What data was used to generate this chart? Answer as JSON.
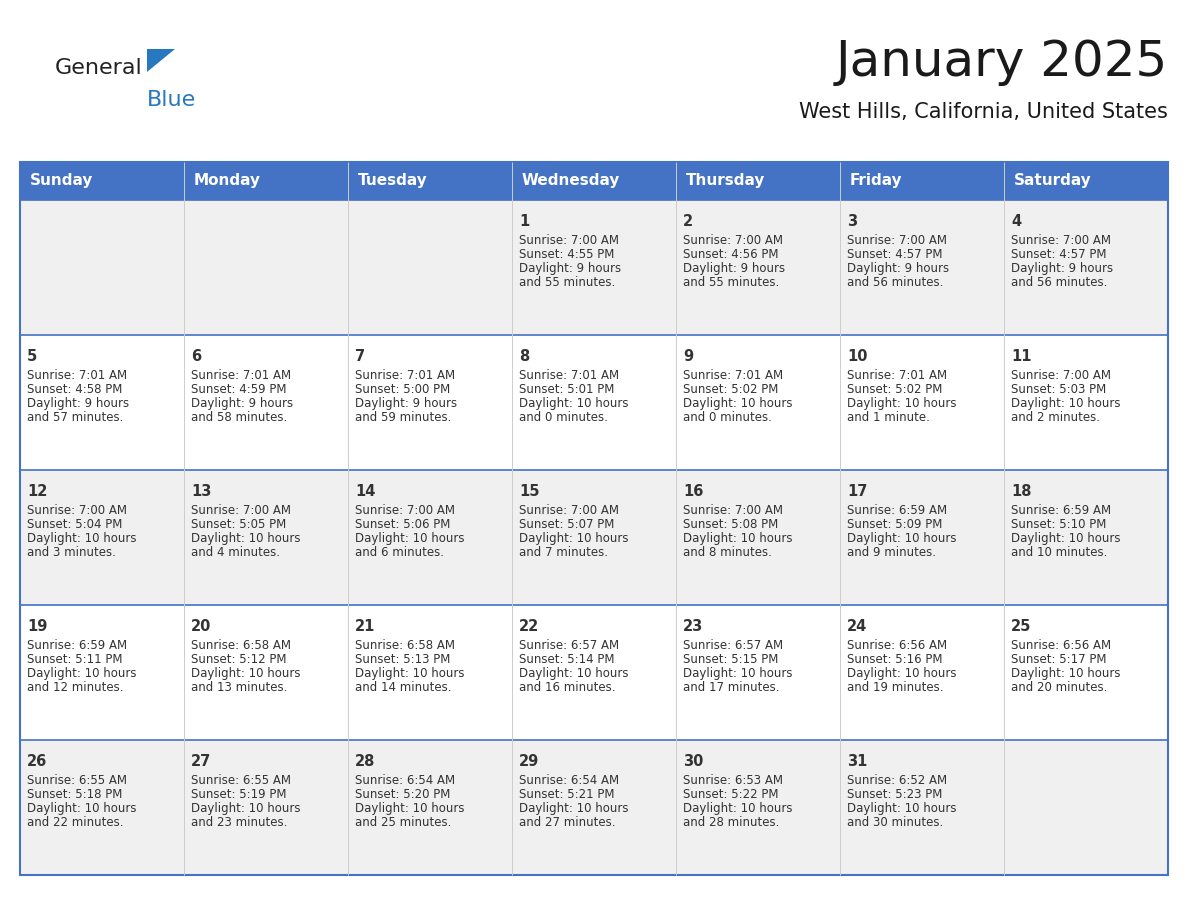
{
  "title": "January 2025",
  "subtitle": "West Hills, California, United States",
  "header_bg": "#4472C4",
  "header_text_color": "#FFFFFF",
  "cell_bg_odd": "#F0F0F0",
  "cell_bg_even": "#FFFFFF",
  "border_color": "#4472C4",
  "text_color": "#333333",
  "day_headers": [
    "Sunday",
    "Monday",
    "Tuesday",
    "Wednesday",
    "Thursday",
    "Friday",
    "Saturday"
  ],
  "title_color": "#1a1a1a",
  "subtitle_color": "#1a1a1a",
  "logo_general_color": "#222222",
  "logo_blue_color": "#2878c0",
  "logo_triangle_color": "#2878c0",
  "days": [
    {
      "day": 1,
      "col": 3,
      "row": 0,
      "sunrise": "7:00 AM",
      "sunset": "4:55 PM",
      "daylight": "9 hours and 55 minutes."
    },
    {
      "day": 2,
      "col": 4,
      "row": 0,
      "sunrise": "7:00 AM",
      "sunset": "4:56 PM",
      "daylight": "9 hours and 55 minutes."
    },
    {
      "day": 3,
      "col": 5,
      "row": 0,
      "sunrise": "7:00 AM",
      "sunset": "4:57 PM",
      "daylight": "9 hours and 56 minutes."
    },
    {
      "day": 4,
      "col": 6,
      "row": 0,
      "sunrise": "7:00 AM",
      "sunset": "4:57 PM",
      "daylight": "9 hours and 56 minutes."
    },
    {
      "day": 5,
      "col": 0,
      "row": 1,
      "sunrise": "7:01 AM",
      "sunset": "4:58 PM",
      "daylight": "9 hours and 57 minutes."
    },
    {
      "day": 6,
      "col": 1,
      "row": 1,
      "sunrise": "7:01 AM",
      "sunset": "4:59 PM",
      "daylight": "9 hours and 58 minutes."
    },
    {
      "day": 7,
      "col": 2,
      "row": 1,
      "sunrise": "7:01 AM",
      "sunset": "5:00 PM",
      "daylight": "9 hours and 59 minutes."
    },
    {
      "day": 8,
      "col": 3,
      "row": 1,
      "sunrise": "7:01 AM",
      "sunset": "5:01 PM",
      "daylight": "10 hours and 0 minutes."
    },
    {
      "day": 9,
      "col": 4,
      "row": 1,
      "sunrise": "7:01 AM",
      "sunset": "5:02 PM",
      "daylight": "10 hours and 0 minutes."
    },
    {
      "day": 10,
      "col": 5,
      "row": 1,
      "sunrise": "7:01 AM",
      "sunset": "5:02 PM",
      "daylight": "10 hours and 1 minute."
    },
    {
      "day": 11,
      "col": 6,
      "row": 1,
      "sunrise": "7:00 AM",
      "sunset": "5:03 PM",
      "daylight": "10 hours and 2 minutes."
    },
    {
      "day": 12,
      "col": 0,
      "row": 2,
      "sunrise": "7:00 AM",
      "sunset": "5:04 PM",
      "daylight": "10 hours and 3 minutes."
    },
    {
      "day": 13,
      "col": 1,
      "row": 2,
      "sunrise": "7:00 AM",
      "sunset": "5:05 PM",
      "daylight": "10 hours and 4 minutes."
    },
    {
      "day": 14,
      "col": 2,
      "row": 2,
      "sunrise": "7:00 AM",
      "sunset": "5:06 PM",
      "daylight": "10 hours and 6 minutes."
    },
    {
      "day": 15,
      "col": 3,
      "row": 2,
      "sunrise": "7:00 AM",
      "sunset": "5:07 PM",
      "daylight": "10 hours and 7 minutes."
    },
    {
      "day": 16,
      "col": 4,
      "row": 2,
      "sunrise": "7:00 AM",
      "sunset": "5:08 PM",
      "daylight": "10 hours and 8 minutes."
    },
    {
      "day": 17,
      "col": 5,
      "row": 2,
      "sunrise": "6:59 AM",
      "sunset": "5:09 PM",
      "daylight": "10 hours and 9 minutes."
    },
    {
      "day": 18,
      "col": 6,
      "row": 2,
      "sunrise": "6:59 AM",
      "sunset": "5:10 PM",
      "daylight": "10 hours and 10 minutes."
    },
    {
      "day": 19,
      "col": 0,
      "row": 3,
      "sunrise": "6:59 AM",
      "sunset": "5:11 PM",
      "daylight": "10 hours and 12 minutes."
    },
    {
      "day": 20,
      "col": 1,
      "row": 3,
      "sunrise": "6:58 AM",
      "sunset": "5:12 PM",
      "daylight": "10 hours and 13 minutes."
    },
    {
      "day": 21,
      "col": 2,
      "row": 3,
      "sunrise": "6:58 AM",
      "sunset": "5:13 PM",
      "daylight": "10 hours and 14 minutes."
    },
    {
      "day": 22,
      "col": 3,
      "row": 3,
      "sunrise": "6:57 AM",
      "sunset": "5:14 PM",
      "daylight": "10 hours and 16 minutes."
    },
    {
      "day": 23,
      "col": 4,
      "row": 3,
      "sunrise": "6:57 AM",
      "sunset": "5:15 PM",
      "daylight": "10 hours and 17 minutes."
    },
    {
      "day": 24,
      "col": 5,
      "row": 3,
      "sunrise": "6:56 AM",
      "sunset": "5:16 PM",
      "daylight": "10 hours and 19 minutes."
    },
    {
      "day": 25,
      "col": 6,
      "row": 3,
      "sunrise": "6:56 AM",
      "sunset": "5:17 PM",
      "daylight": "10 hours and 20 minutes."
    },
    {
      "day": 26,
      "col": 0,
      "row": 4,
      "sunrise": "6:55 AM",
      "sunset": "5:18 PM",
      "daylight": "10 hours and 22 minutes."
    },
    {
      "day": 27,
      "col": 1,
      "row": 4,
      "sunrise": "6:55 AM",
      "sunset": "5:19 PM",
      "daylight": "10 hours and 23 minutes."
    },
    {
      "day": 28,
      "col": 2,
      "row": 4,
      "sunrise": "6:54 AM",
      "sunset": "5:20 PM",
      "daylight": "10 hours and 25 minutes."
    },
    {
      "day": 29,
      "col": 3,
      "row": 4,
      "sunrise": "6:54 AM",
      "sunset": "5:21 PM",
      "daylight": "10 hours and 27 minutes."
    },
    {
      "day": 30,
      "col": 4,
      "row": 4,
      "sunrise": "6:53 AM",
      "sunset": "5:22 PM",
      "daylight": "10 hours and 28 minutes."
    },
    {
      "day": 31,
      "col": 5,
      "row": 4,
      "sunrise": "6:52 AM",
      "sunset": "5:23 PM",
      "daylight": "10 hours and 30 minutes."
    }
  ]
}
